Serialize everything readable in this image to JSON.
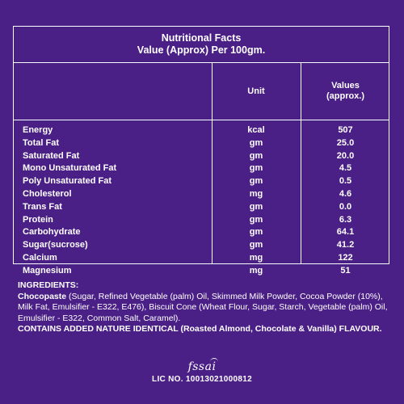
{
  "table": {
    "title_line1": "Nutritional Facts",
    "title_line2": "Value (Approx) Per 100gm.",
    "header_unit": "Unit",
    "header_values_line1": "Values",
    "header_values_line2": "(approx.)",
    "rows": [
      {
        "name": "Energy",
        "unit": "kcal",
        "value": "507"
      },
      {
        "name": "Total Fat",
        "unit": "gm",
        "value": "25.0"
      },
      {
        "name": "Saturated Fat",
        "unit": "gm",
        "value": "20.0"
      },
      {
        "name": "Mono Unsaturated Fat",
        "unit": "gm",
        "value": "4.5"
      },
      {
        "name": "Poly Unsaturated Fat",
        "unit": "gm",
        "value": "0.5"
      },
      {
        "name": "Cholesterol",
        "unit": "mg",
        "value": "4.6"
      },
      {
        "name": "Trans Fat",
        "unit": "gm",
        "value": "0.0"
      },
      {
        "name": "Protein",
        "unit": "gm",
        "value": "6.3"
      },
      {
        "name": "Carbohydrate",
        "unit": "gm",
        "value": "64.1"
      },
      {
        "name": "Sugar(sucrose)",
        "unit": "gm",
        "value": "41.2"
      },
      {
        "name": "Calcium",
        "unit": "mg",
        "value": "122"
      },
      {
        "name": "Magnesium",
        "unit": "mg",
        "value": "51"
      }
    ]
  },
  "ingredients": {
    "title": "INGREDIENTS:",
    "chocopaste_label": "Chocopaste",
    "body_line": " (Sugar, Refined Vegetable (palm) Oil, Skimmed Milk Powder, Cocoa Powder (10%), Milk Fat, Emulsifier - E322, E476), Biscuit Cone (Wheat Flour, Sugar, Starch, Vegetable (palm) Oil, Emulsifier - E322, Common Salt, Caramel).",
    "contains": "CONTAINS ADDED NATURE IDENTICAL (Roasted Almond, Chocolate & Vanilla) FLAVOUR."
  },
  "footer": {
    "logo_text": "fssai",
    "license": "LIC NO. 10013021000812"
  }
}
